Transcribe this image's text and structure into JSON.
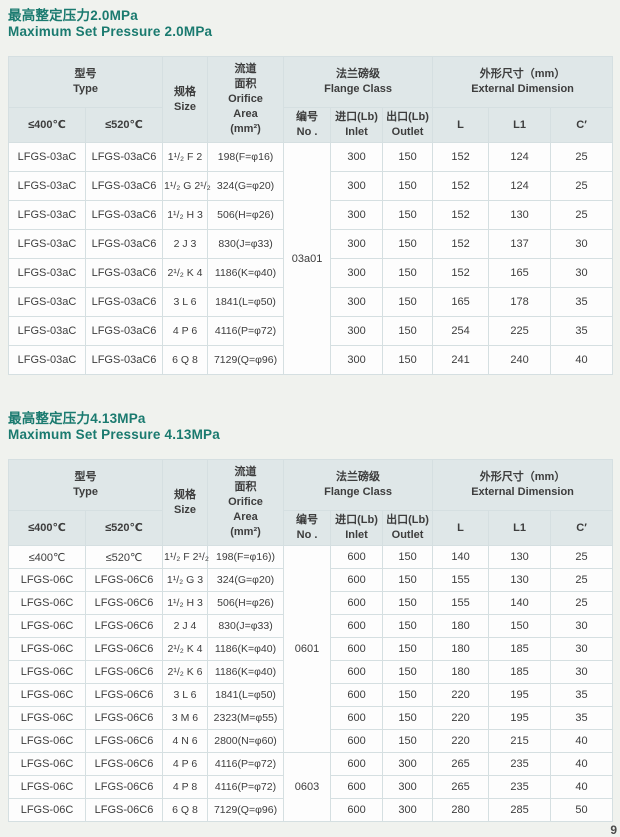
{
  "page": {
    "accent_color": "#1a7a6f",
    "header_bg_color": "#dfe7e8",
    "border_color": "#d5dfe1",
    "corner_mark": "9"
  },
  "header_labels": {
    "type": "型号\nType",
    "temp_400": "≤400℃",
    "temp_520": "≤520℃",
    "size": "规格\nSize",
    "orifice": "流道\n面积\nOrifice\nArea\n(mm²)",
    "flange": "法兰磅级\nFlange Class",
    "no": "编号\nNo .",
    "inlet": "进口(Lb)\nInlet",
    "outlet": "出口(Lb)\nOutlet",
    "dimension": "外形尺寸（mm）\nExternal Dimension",
    "l": "L",
    "l1": "L1",
    "c": "C′"
  },
  "tables": [
    {
      "title_zh": "最高整定压力2.0MPa",
      "title_en": "Maximum Set Pressure 2.0MPa",
      "no_spans": [
        {
          "label": "03a01",
          "rows": 8
        }
      ],
      "rows": [
        [
          "LFGS-03aC",
          "LFGS-03aC6",
          "1¹/₂ F 2",
          "198(F=φ16)",
          "300",
          "150",
          "152",
          "124",
          "25"
        ],
        [
          "LFGS-03aC",
          "LFGS-03aC6",
          "1¹/₂ G 2¹/₂",
          "324(G=φ20)",
          "300",
          "150",
          "152",
          "124",
          "25"
        ],
        [
          "LFGS-03aC",
          "LFGS-03aC6",
          "1¹/₂ H 3",
          "506(H=φ26)",
          "300",
          "150",
          "152",
          "130",
          "25"
        ],
        [
          "LFGS-03aC",
          "LFGS-03aC6",
          "2 J 3",
          "830(J=φ33)",
          "300",
          "150",
          "152",
          "137",
          "30"
        ],
        [
          "LFGS-03aC",
          "LFGS-03aC6",
          "2¹/₂ K 4",
          "1186(K=φ40)",
          "300",
          "150",
          "152",
          "165",
          "30"
        ],
        [
          "LFGS-03aC",
          "LFGS-03aC6",
          "3 L 6",
          "1841(L=φ50)",
          "300",
          "150",
          "165",
          "178",
          "35"
        ],
        [
          "LFGS-03aC",
          "LFGS-03aC6",
          "4 P 6",
          "4116(P=φ72)",
          "300",
          "150",
          "254",
          "225",
          "35"
        ],
        [
          "LFGS-03aC",
          "LFGS-03aC6",
          "6 Q 8",
          "7129(Q=φ96)",
          "300",
          "150",
          "241",
          "240",
          "40"
        ]
      ]
    },
    {
      "title_zh": "最高整定压力4.13MPa",
      "title_en": "Maximum Set Pressure 4.13MPa",
      "no_spans": [
        {
          "label": "0601",
          "rows": 9
        },
        {
          "label": "0603",
          "rows": 3
        }
      ],
      "rows": [
        [
          "≤400℃",
          "≤520℃",
          "1¹/₂ F 2¹/₂",
          "198(F=φ16))",
          "600",
          "150",
          "140",
          "130",
          "25"
        ],
        [
          "LFGS-06C",
          "LFGS-06C6",
          "1¹/₂ G 3",
          "324(G=φ20)",
          "600",
          "150",
          "155",
          "130",
          "25"
        ],
        [
          "LFGS-06C",
          "LFGS-06C6",
          "1¹/₂ H 3",
          "506(H=φ26)",
          "600",
          "150",
          "155",
          "140",
          "25"
        ],
        [
          "LFGS-06C",
          "LFGS-06C6",
          "2 J 4",
          "830(J=φ33)",
          "600",
          "150",
          "180",
          "150",
          "30"
        ],
        [
          "LFGS-06C",
          "LFGS-06C6",
          "2¹/₂ K 4",
          "1186(K=φ40)",
          "600",
          "150",
          "180",
          "185",
          "30"
        ],
        [
          "LFGS-06C",
          "LFGS-06C6",
          "2¹/₂ K 6",
          "1186(K=φ40)",
          "600",
          "150",
          "180",
          "185",
          "30"
        ],
        [
          "LFGS-06C",
          "LFGS-06C6",
          "3 L 6",
          "1841(L=φ50)",
          "600",
          "150",
          "220",
          "195",
          "35"
        ],
        [
          "LFGS-06C",
          "LFGS-06C6",
          "3 M 6",
          "2323(M=φ55)",
          "600",
          "150",
          "220",
          "195",
          "35"
        ],
        [
          "LFGS-06C",
          "LFGS-06C6",
          "4 N 6",
          "2800(N=φ60)",
          "600",
          "150",
          "220",
          "215",
          "40"
        ],
        [
          "LFGS-06C",
          "LFGS-06C6",
          "4 P 6",
          "4116(P=φ72)",
          "600",
          "300",
          "265",
          "235",
          "40"
        ],
        [
          "LFGS-06C",
          "LFGS-06C6",
          "4 P 8",
          "4116(P=φ72)",
          "600",
          "300",
          "265",
          "235",
          "40"
        ],
        [
          "LFGS-06C",
          "LFGS-06C6",
          "6 Q 8",
          "7129(Q=φ96)",
          "600",
          "300",
          "280",
          "285",
          "50"
        ]
      ]
    }
  ]
}
